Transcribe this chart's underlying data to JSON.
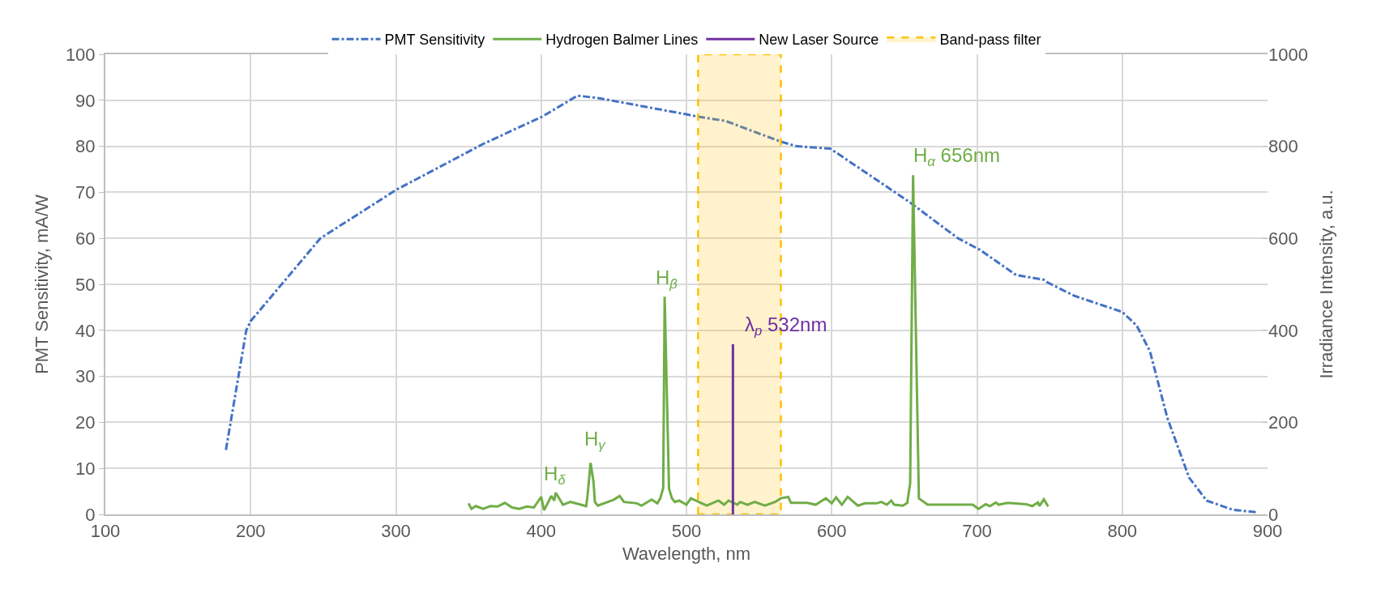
{
  "chart_data": {
    "type": "line",
    "xlabel": "Wavelength, nm",
    "ylabel": "PMT Sensitivity, mA/W",
    "y2label": "Irradiance Intensity, a.u.",
    "xlim": [
      100,
      900
    ],
    "xticks": [
      100,
      200,
      300,
      400,
      500,
      600,
      700,
      800,
      900
    ],
    "ylim": [
      0,
      100
    ],
    "yticks": [
      0,
      10,
      20,
      30,
      40,
      50,
      60,
      70,
      80,
      90,
      100
    ],
    "y2lim": [
      0,
      1000
    ],
    "y2ticks": [
      0,
      200,
      400,
      600,
      800,
      1000
    ],
    "grid": true,
    "legend": "top",
    "marker": "none",
    "series": [
      {
        "name": "PMT Sensitivity",
        "color": "#4472c4",
        "line_style": "dashdot",
        "x": [
          183,
          197,
          200,
          248,
          300,
          360,
          401,
          425,
          439,
          499,
          507,
          527,
          565,
          576,
          599,
          653,
          687,
          702,
          727,
          746,
          748,
          767,
          800,
          810,
          819,
          831,
          846,
          858,
          876,
          892
        ],
        "values": [
          14,
          40,
          42,
          60,
          70.5,
          80.5,
          86.5,
          91,
          90.5,
          87,
          86.5,
          85.5,
          81,
          80,
          79.5,
          68,
          60,
          57.5,
          52,
          51,
          50.5,
          47.5,
          44,
          41,
          35.5,
          21,
          8,
          3,
          1,
          0.5
        ]
      },
      {
        "name": "Hydrogen Balmer Lines",
        "color": "#70ad47",
        "line_style": "solid",
        "axis": "y2",
        "x": [
          350,
          352,
          355,
          360,
          365,
          370,
          375,
          380,
          385,
          390,
          395,
          400,
          402,
          407,
          409,
          410,
          415,
          420,
          431,
          432,
          434,
          436,
          437,
          439,
          450,
          454,
          457,
          466,
          469,
          476,
          480,
          482,
          484,
          485,
          488,
          490,
          492,
          495,
          500,
          503,
          514,
          522,
          526,
          529,
          535,
          537,
          542,
          547,
          554,
          561,
          565,
          570,
          572,
          583,
          589,
          596,
          600,
          603,
          607,
          611,
          618,
          623,
          631,
          634,
          638,
          641,
          643,
          649,
          652,
          654,
          656,
          660,
          666,
          697,
          701,
          706,
          709,
          713,
          715,
          721,
          734,
          738,
          742,
          743,
          746,
          749
        ],
        "values": [
          24,
          12,
          18,
          12,
          18,
          17,
          25,
          15,
          12,
          17,
          15,
          38,
          9,
          40,
          30,
          47,
          21,
          27,
          18,
          43,
          112,
          71,
          27,
          19,
          32,
          40,
          27,
          24,
          19,
          32,
          24,
          35,
          57,
          473,
          56,
          35,
          27,
          30,
          21,
          35,
          19,
          30,
          21,
          30,
          21,
          27,
          21,
          27,
          19,
          27,
          35,
          38,
          25,
          25,
          21,
          35,
          24,
          37,
          21,
          38,
          19,
          24,
          24,
          27,
          21,
          30,
          21,
          19,
          25,
          68,
          737,
          35,
          21,
          21,
          12,
          22,
          18,
          26,
          21,
          25,
          22,
          18,
          26,
          18,
          33,
          17
        ]
      },
      {
        "name": "New Laser Source",
        "color": "#7030a0",
        "line_style": "solid",
        "axis": "y2",
        "x": [
          532,
          532
        ],
        "values": [
          0,
          370
        ]
      }
    ],
    "bands": [
      {
        "axis": "x",
        "from": 508,
        "to": 565,
        "label": "Band-pass filter",
        "color": "#ffc000"
      }
    ],
    "annotations": [
      "H$_{δ}$",
      "H$_{γ}$",
      "H$_{β}$",
      "λ$_{p}$ 532nm",
      "H$_{α}$ 656nm"
    ]
  }
}
